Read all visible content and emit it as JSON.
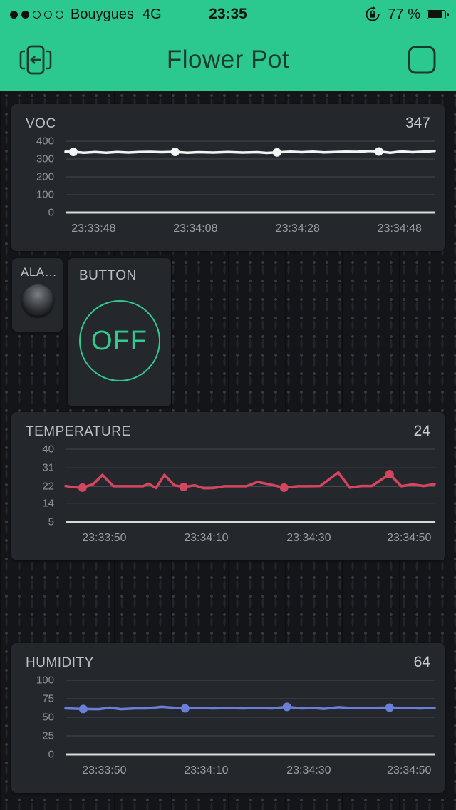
{
  "status_bar": {
    "carrier": "Bouygues",
    "network": "4G",
    "time": "23:35",
    "battery_percent": "77 %",
    "signal_filled_dots": 2,
    "signal_total_dots": 5
  },
  "header": {
    "title": "Flower Pot"
  },
  "widgets": {
    "alarm": {
      "label": "ALA…"
    },
    "button": {
      "label": "BUTTON",
      "state": "OFF"
    }
  },
  "colors": {
    "accent_green": "#2bc990",
    "button_green": "#30c98e",
    "voc_line": "#f2f4f5",
    "temperature_line": "#d6455f",
    "humidity_line": "#6b7ed8",
    "gridline": "#45484e",
    "axis_line": "#d7d9db",
    "widget_bg": "#24282d",
    "dashboard_bg": "#131519"
  },
  "chart_data": [
    {
      "type": "line",
      "title": "VOC",
      "current_value": "347",
      "color": "#f2f4f5",
      "ylim": [
        0,
        400
      ],
      "yticks": [
        400,
        300,
        200,
        100,
        0
      ],
      "xticks": [
        {
          "label": "23:33:48",
          "fx": 0.076
        },
        {
          "label": "23:34:08",
          "fx": 0.352
        },
        {
          "label": "23:34:28",
          "fx": 0.629
        },
        {
          "label": "23:34:48",
          "fx": 0.905
        }
      ],
      "points": [
        [
          0,
          341
        ],
        [
          0.021,
          340
        ],
        [
          0.05,
          335
        ],
        [
          0.08,
          339
        ],
        [
          0.11,
          335
        ],
        [
          0.14,
          339
        ],
        [
          0.17,
          336
        ],
        [
          0.2,
          339
        ],
        [
          0.23,
          340
        ],
        [
          0.26,
          338
        ],
        [
          0.297,
          340
        ],
        [
          0.33,
          335
        ],
        [
          0.36,
          338
        ],
        [
          0.4,
          336
        ],
        [
          0.44,
          339
        ],
        [
          0.48,
          336
        ],
        [
          0.52,
          338
        ],
        [
          0.545,
          334
        ],
        [
          0.573,
          337
        ],
        [
          0.61,
          341
        ],
        [
          0.64,
          338
        ],
        [
          0.67,
          341
        ],
        [
          0.7,
          337
        ],
        [
          0.73,
          339
        ],
        [
          0.76,
          341
        ],
        [
          0.79,
          340
        ],
        [
          0.822,
          345
        ],
        [
          0.849,
          342
        ],
        [
          0.88,
          335
        ],
        [
          0.91,
          342
        ],
        [
          0.94,
          338
        ],
        [
          0.97,
          341
        ],
        [
          1,
          345
        ]
      ],
      "markers": [
        [
          0.021,
          340
        ],
        [
          0.297,
          340
        ],
        [
          0.573,
          337
        ],
        [
          0.849,
          342
        ]
      ]
    },
    {
      "type": "line",
      "title": "TEMPERATURE",
      "current_value": "24",
      "color": "#d6455f",
      "ylim": [
        5,
        40
      ],
      "yticks": [
        40,
        31,
        22,
        14,
        5
      ],
      "xticks": [
        {
          "label": "23:33:50",
          "fx": 0.105
        },
        {
          "label": "23:34:10",
          "fx": 0.381
        },
        {
          "label": "23:34:30",
          "fx": 0.659
        },
        {
          "label": "23:34:50",
          "fx": 0.931
        }
      ],
      "points": [
        [
          0,
          22.3
        ],
        [
          0.023,
          21.7
        ],
        [
          0.046,
          21.5
        ],
        [
          0.075,
          23.2
        ],
        [
          0.1,
          27.6
        ],
        [
          0.13,
          22.2
        ],
        [
          0.17,
          22.2
        ],
        [
          0.21,
          22.2
        ],
        [
          0.225,
          23.4
        ],
        [
          0.245,
          21.3
        ],
        [
          0.268,
          27.6
        ],
        [
          0.295,
          22.6
        ],
        [
          0.32,
          21.8
        ],
        [
          0.35,
          22.6
        ],
        [
          0.375,
          21.2
        ],
        [
          0.4,
          21.3
        ],
        [
          0.43,
          22.2
        ],
        [
          0.46,
          22.2
        ],
        [
          0.49,
          22.2
        ],
        [
          0.52,
          24.2
        ],
        [
          0.55,
          23.2
        ],
        [
          0.592,
          21.5
        ],
        [
          0.63,
          22.2
        ],
        [
          0.66,
          22.2
        ],
        [
          0.69,
          22.3
        ],
        [
          0.739,
          28.8
        ],
        [
          0.77,
          21.5
        ],
        [
          0.8,
          22.3
        ],
        [
          0.83,
          22.3
        ],
        [
          0.878,
          28
        ],
        [
          0.91,
          22.2
        ],
        [
          0.94,
          23.1
        ],
        [
          0.97,
          22.3
        ],
        [
          1,
          23.2
        ]
      ],
      "markers": [
        [
          0.046,
          21.5
        ],
        [
          0.32,
          21.8
        ],
        [
          0.592,
          21.5
        ],
        [
          0.878,
          28
        ]
      ]
    },
    {
      "type": "line",
      "title": "HUMIDITY",
      "current_value": "64",
      "color": "#6b7ed8",
      "ylim": [
        0,
        100
      ],
      "yticks": [
        100,
        75,
        50,
        25,
        0
      ],
      "xticks": [
        {
          "label": "23:33:50",
          "fx": 0.105
        },
        {
          "label": "23:34:10",
          "fx": 0.381
        },
        {
          "label": "23:34:30",
          "fx": 0.659
        },
        {
          "label": "23:34:50",
          "fx": 0.931
        }
      ],
      "points": [
        [
          0,
          62
        ],
        [
          0.048,
          61.2
        ],
        [
          0.09,
          61
        ],
        [
          0.12,
          63
        ],
        [
          0.15,
          61
        ],
        [
          0.19,
          62
        ],
        [
          0.22,
          62
        ],
        [
          0.26,
          64
        ],
        [
          0.29,
          63
        ],
        [
          0.324,
          62
        ],
        [
          0.36,
          62.6
        ],
        [
          0.4,
          62
        ],
        [
          0.44,
          62.6
        ],
        [
          0.48,
          62
        ],
        [
          0.52,
          62.6
        ],
        [
          0.56,
          62
        ],
        [
          0.6,
          64
        ],
        [
          0.64,
          62
        ],
        [
          0.67,
          62.6
        ],
        [
          0.7,
          61.4
        ],
        [
          0.74,
          63.6
        ],
        [
          0.77,
          62.6
        ],
        [
          0.81,
          62.6
        ],
        [
          0.878,
          63
        ],
        [
          0.92,
          62.6
        ],
        [
          0.96,
          62
        ],
        [
          1,
          62.6
        ]
      ],
      "markers": [
        [
          0.048,
          61.2
        ],
        [
          0.324,
          62
        ],
        [
          0.6,
          64
        ],
        [
          0.878,
          63
        ]
      ]
    }
  ]
}
